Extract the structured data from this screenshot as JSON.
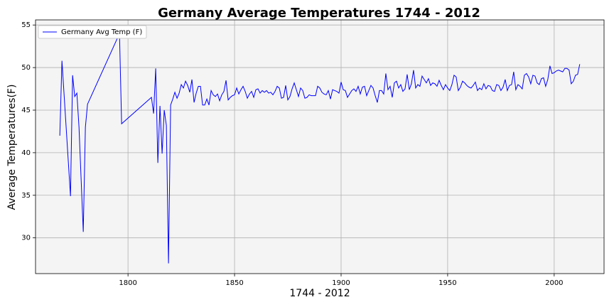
{
  "chart_data": {
    "type": "line",
    "title": "Germany Average Temperatures 1744 - 2012",
    "x_label": "1744 - 2012",
    "y_label": "Average Temperatures(F)",
    "xlim": [
      1756.6,
      2023.4
    ],
    "ylim": [
      25.8,
      55.6
    ],
    "xticks": [
      1800,
      1850,
      1900,
      1950,
      2000
    ],
    "yticks": [
      30,
      35,
      40,
      45,
      50,
      55
    ],
    "grid": true,
    "legend_position": "upper left",
    "x": [
      1768,
      1769,
      1773,
      1774,
      1775,
      1776,
      1777,
      1779,
      1780,
      1781,
      1796,
      1797,
      1811,
      1812,
      1813,
      1814,
      1815,
      1816,
      1817,
      1818,
      1819,
      1820,
      1821,
      1822,
      1823,
      1824,
      1825,
      1826,
      1827,
      1828,
      1829,
      1830,
      1831,
      1832,
      1833,
      1834,
      1835,
      1836,
      1837,
      1838,
      1839,
      1840,
      1841,
      1842,
      1843,
      1844,
      1845,
      1846,
      1847,
      1848,
      1849,
      1850,
      1851,
      1852,
      1853,
      1854,
      1855,
      1856,
      1857,
      1858,
      1859,
      1860,
      1861,
      1862,
      1863,
      1864,
      1865,
      1866,
      1867,
      1868,
      1869,
      1870,
      1871,
      1872,
      1873,
      1874,
      1875,
      1876,
      1877,
      1878,
      1879,
      1880,
      1881,
      1882,
      1883,
      1884,
      1885,
      1886,
      1887,
      1888,
      1889,
      1890,
      1891,
      1892,
      1893,
      1894,
      1895,
      1896,
      1897,
      1898,
      1899,
      1900,
      1901,
      1902,
      1903,
      1904,
      1905,
      1906,
      1907,
      1908,
      1909,
      1910,
      1911,
      1912,
      1913,
      1914,
      1915,
      1916,
      1917,
      1918,
      1919,
      1920,
      1921,
      1922,
      1923,
      1924,
      1925,
      1926,
      1927,
      1928,
      1929,
      1930,
      1931,
      1932,
      1933,
      1934,
      1935,
      1936,
      1937,
      1938,
      1939,
      1940,
      1941,
      1942,
      1943,
      1944,
      1945,
      1946,
      1947,
      1948,
      1949,
      1950,
      1951,
      1952,
      1953,
      1954,
      1955,
      1956,
      1957,
      1958,
      1959,
      1960,
      1961,
      1962,
      1963,
      1964,
      1965,
      1966,
      1967,
      1968,
      1969,
      1970,
      1971,
      1972,
      1973,
      1974,
      1975,
      1976,
      1977,
      1978,
      1979,
      1980,
      1981,
      1982,
      1983,
      1984,
      1985,
      1986,
      1987,
      1988,
      1989,
      1990,
      1991,
      1992,
      1993,
      1994,
      1995,
      1996,
      1997,
      1998,
      1999,
      2000,
      2001,
      2002,
      2003,
      2004,
      2005,
      2006,
      2007,
      2008,
      2009,
      2010,
      2011,
      2012
    ],
    "series": [
      {
        "name": "Germany Avg Temp (F)",
        "color": "#0000ff",
        "values": [
          42.0,
          50.8,
          34.9,
          49.1,
          46.6,
          47.0,
          43.0,
          30.7,
          43.0,
          45.7,
          54.0,
          43.4,
          46.5,
          44.6,
          49.9,
          38.8,
          45.5,
          39.9,
          45.0,
          43.2,
          27.0,
          45.6,
          46.3,
          47.1,
          46.4,
          47.0,
          48.0,
          47.6,
          48.4,
          47.9,
          47.1,
          48.6,
          45.9,
          47.0,
          47.8,
          47.8,
          45.6,
          45.6,
          46.3,
          45.6,
          47.3,
          46.8,
          46.6,
          46.9,
          46.1,
          46.8,
          47.2,
          48.5,
          46.2,
          46.5,
          46.7,
          46.8,
          47.6,
          46.9,
          47.4,
          47.8,
          47.2,
          46.4,
          46.9,
          47.2,
          46.5,
          47.4,
          47.5,
          47.0,
          47.3,
          47.1,
          47.3,
          47.0,
          47.1,
          46.8,
          47.2,
          47.8,
          47.6,
          46.4,
          46.5,
          47.9,
          46.2,
          46.6,
          47.5,
          48.2,
          47.4,
          46.6,
          47.6,
          47.3,
          46.4,
          46.5,
          46.8,
          46.7,
          46.7,
          46.7,
          47.8,
          47.6,
          47.1,
          46.9,
          46.8,
          47.3,
          46.3,
          47.4,
          47.3,
          47.2,
          47.0,
          48.3,
          47.4,
          47.3,
          46.5,
          46.9,
          47.3,
          47.5,
          47.2,
          47.8,
          46.9,
          47.7,
          47.8,
          46.7,
          47.3,
          47.9,
          47.6,
          46.7,
          45.9,
          47.3,
          47.3,
          46.9,
          49.3,
          47.4,
          47.8,
          46.5,
          48.2,
          48.4,
          47.6,
          48.0,
          47.2,
          47.5,
          49.2,
          47.4,
          48.1,
          49.7,
          47.6,
          48.0,
          47.8,
          49.0,
          48.6,
          48.2,
          48.7,
          47.9,
          48.2,
          48.1,
          47.8,
          48.5,
          47.9,
          47.4,
          48.0,
          47.6,
          47.3,
          48.0,
          49.1,
          48.9,
          47.3,
          47.7,
          48.4,
          48.2,
          47.9,
          47.7,
          47.6,
          47.9,
          48.3,
          47.3,
          47.6,
          47.4,
          48.1,
          47.5,
          47.9,
          47.8,
          47.3,
          47.2,
          48.0,
          47.9,
          47.3,
          47.7,
          48.6,
          47.3,
          47.9,
          48.0,
          49.5,
          47.4,
          48.0,
          47.8,
          47.5,
          49.1,
          49.3,
          48.9,
          48.1,
          49.1,
          49.0,
          48.2,
          48.0,
          48.7,
          48.8,
          47.8,
          48.6,
          50.2,
          49.3,
          49.4,
          49.6,
          49.7,
          49.6,
          49.5,
          49.9,
          49.9,
          49.7,
          48.1,
          48.4,
          49.1,
          49.2,
          50.4
        ]
      }
    ]
  }
}
